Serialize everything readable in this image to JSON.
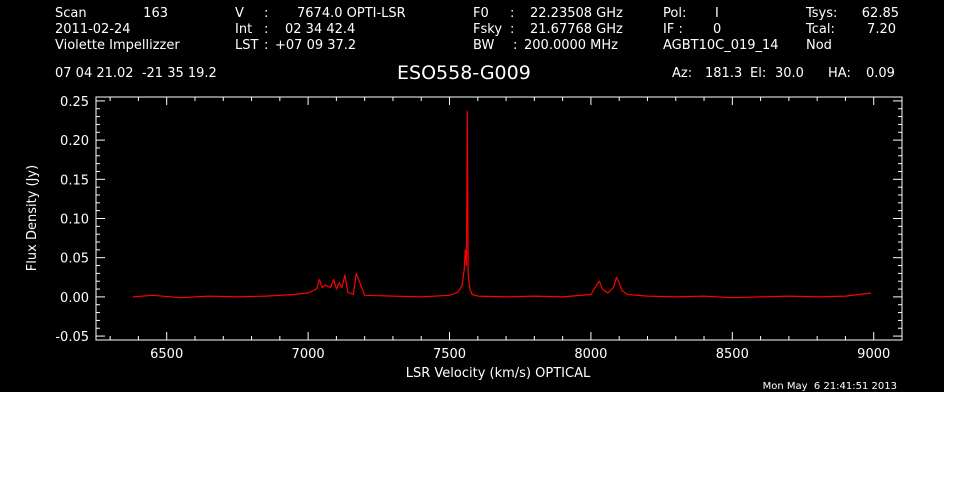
{
  "header": {
    "scan_label": "Scan",
    "scan_value": "163",
    "date": "2011-02-24",
    "observer": "Violette Impellizzer",
    "v_label": "V",
    "v_sep": ":",
    "v_value": "7674.0 OPTI-LSR",
    "int_label": "Int",
    "int_sep": ":",
    "int_value": "02 34 42.4",
    "lst_label": "LST",
    "lst_sep": ":",
    "lst_value": "+07 09 37.2",
    "f0_label": "F0",
    "f0_sep": ":",
    "f0_value": "22.23508 GHz",
    "fsky_label": "Fsky",
    "fsky_sep": ":",
    "fsky_value": "21.67768 GHz",
    "bw_label": "BW",
    "bw_sep": ":",
    "bw_value": "200.0000 MHz",
    "pol_label": "Pol:",
    "pol_value": "I",
    "if_label": "IF :",
    "if_value": "0",
    "project": "AGBT10C_019_14",
    "tsys_label": "Tsys:",
    "tsys_value": "62.85",
    "tcal_label": "Tcal:",
    "tcal_value": "7.20",
    "procedure": "Nod",
    "coords": "07 04 21.02  -21 35 19.2",
    "az_label": "Az:",
    "az_value": "181.3",
    "el_label": "El:",
    "el_value": "30.0",
    "ha_label": "HA:",
    "ha_value": "0.09"
  },
  "footer": {
    "timestamp": "Mon May  6 21:41:51 2013"
  },
  "colors": {
    "background": "#000000",
    "axes": "#ffffff",
    "trace": "#ff0000"
  },
  "chart_data": {
    "type": "line",
    "title": "ESO558-G009",
    "xlabel": "LSR Velocity (km/s) OPTICAL",
    "ylabel": "Flux Density (Jy)",
    "xlim": [
      6250,
      9100
    ],
    "ylim": [
      -0.055,
      0.255
    ],
    "xticks": [
      6500,
      7000,
      7500,
      8000,
      8500,
      9000
    ],
    "yticks": [
      -0.05,
      0.0,
      0.05,
      0.1,
      0.15,
      0.2,
      0.25
    ],
    "xtick_labels": [
      "6500",
      "7000",
      "7500",
      "8000",
      "8500",
      "9000"
    ],
    "ytick_labels": [
      "-0.05",
      "0.00",
      "0.05",
      "0.10",
      "0.15",
      "0.20",
      "0.25"
    ],
    "grid": false,
    "series": [
      {
        "x": [
          6380,
          6450,
          6550,
          6650,
          6750,
          6850,
          6950,
          7000,
          7030,
          7040,
          7050,
          7060,
          7080,
          7090,
          7100,
          7110,
          7120,
          7130,
          7140,
          7160,
          7170,
          7200,
          7300,
          7400,
          7500,
          7530,
          7545,
          7552,
          7556,
          7560,
          7563,
          7566,
          7569,
          7572,
          7580,
          7600,
          7700,
          7800,
          7900,
          8000,
          8020,
          8030,
          8040,
          8060,
          8080,
          8090,
          8100,
          8110,
          8130,
          8200,
          8300,
          8400,
          8500,
          8600,
          8700,
          8800,
          8900,
          8990
        ],
        "y": [
          0.0,
          0.002,
          -0.001,
          0.001,
          0.0,
          0.001,
          0.003,
          0.005,
          0.01,
          0.022,
          0.012,
          0.015,
          0.012,
          0.022,
          0.01,
          0.018,
          0.012,
          0.028,
          0.006,
          0.003,
          0.03,
          0.002,
          0.001,
          0.0,
          0.002,
          0.006,
          0.015,
          0.035,
          0.06,
          0.04,
          0.237,
          0.03,
          0.02,
          0.01,
          0.003,
          0.001,
          0.0,
          0.001,
          0.0,
          0.003,
          0.015,
          0.02,
          0.01,
          0.005,
          0.012,
          0.025,
          0.018,
          0.008,
          0.003,
          0.001,
          0.0,
          0.001,
          -0.001,
          0.0,
          0.001,
          0.0,
          0.001,
          0.005
        ]
      }
    ]
  }
}
